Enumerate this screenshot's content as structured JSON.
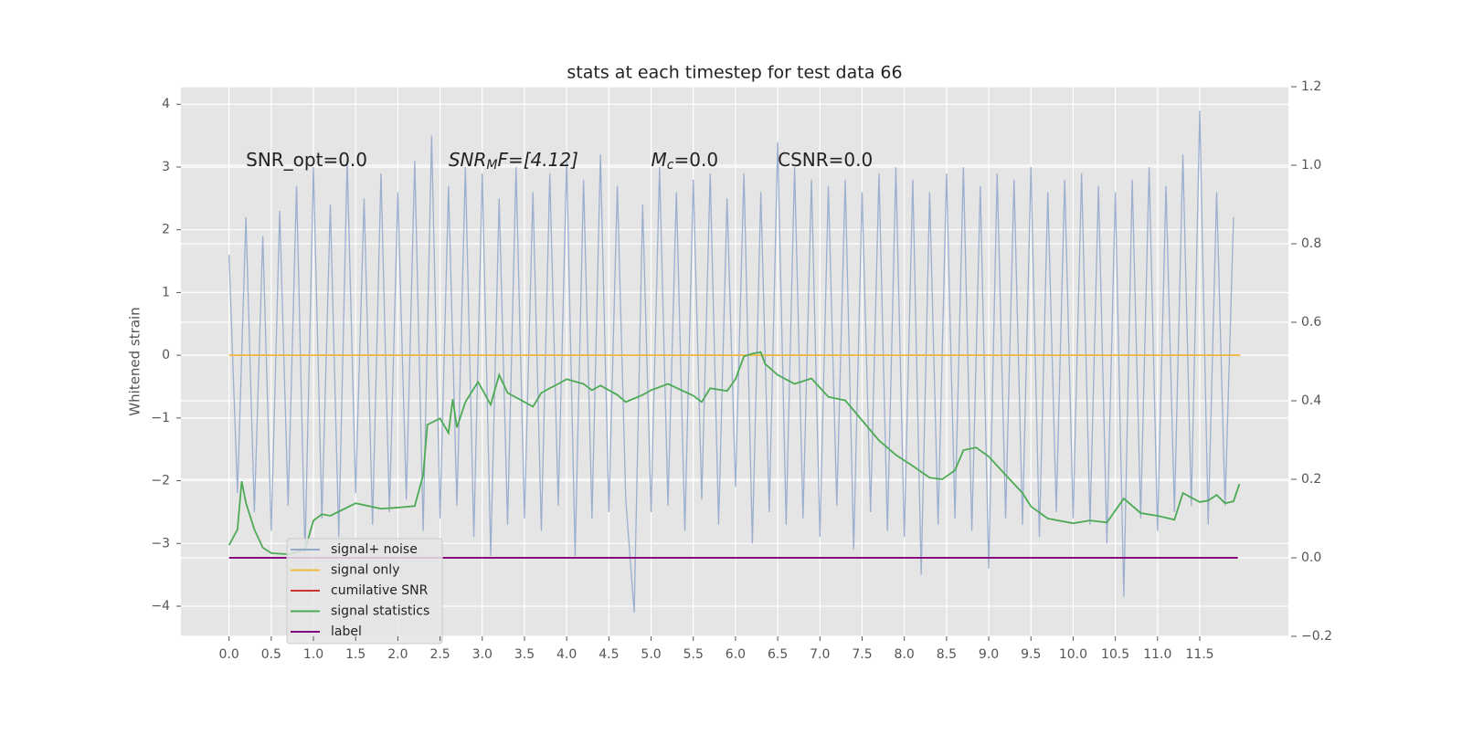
{
  "chart_data": {
    "type": "line",
    "title": "stats at each timestep for test data 66",
    "ylabel": "Whitened strain",
    "annotations": [
      {
        "parts": [
          "SNR_opt=0.0"
        ],
        "x": 0.2
      },
      {
        "parts": [
          "SNR",
          "M",
          "F=[4.12]"
        ],
        "x": 2.6
      },
      {
        "parts": [
          "M",
          "c",
          "=0.0"
        ],
        "x": 5.0
      },
      {
        "parts": [
          "CSNR=0.0"
        ],
        "x": 6.5
      }
    ],
    "annotation_y": 3.1,
    "xlim": [
      -0.57,
      12.55
    ],
    "ylim": [
      -4.48,
      4.28
    ],
    "y2lim": [
      -0.2,
      1.2
    ],
    "xticks": [
      {
        "value": 0,
        "label": "0.0"
      },
      0.5,
      {
        "value": 1,
        "label": "1.0"
      },
      1.5,
      {
        "value": 2,
        "label": "2.0"
      },
      2.5,
      {
        "value": 3,
        "label": "3.0"
      },
      3.5,
      {
        "value": 4,
        "label": "4.0"
      },
      4.5,
      {
        "value": 5,
        "label": "5.0"
      },
      5.5,
      {
        "value": 6,
        "label": "6.0"
      },
      6.5,
      {
        "value": 7,
        "label": "7.0"
      },
      7.5,
      {
        "value": 8,
        "label": "8.0"
      },
      8.5,
      {
        "value": 9,
        "label": "9.0"
      },
      9.5,
      {
        "value": 10,
        "label": "10.0"
      },
      10.5,
      {
        "value": 11,
        "label": "11.0"
      },
      11.5
    ],
    "yticks": [
      {
        "value": -4,
        "label": "−4"
      },
      {
        "value": -3,
        "label": "−3"
      },
      {
        "value": -2,
        "label": "−2"
      },
      {
        "value": -1,
        "label": "−1"
      },
      0,
      1,
      2,
      3,
      4
    ],
    "y2ticks": [
      {
        "value": -0.2,
        "label": "−0.2"
      },
      {
        "value": 0,
        "label": "0.0"
      },
      0.2,
      0.4,
      0.6,
      0.8,
      {
        "value": 1,
        "label": "1.0"
      },
      1.2
    ],
    "grid": true,
    "legend": "lower left",
    "series": [
      {
        "name": "signal+ noise",
        "color": "#93a9cc",
        "x": [
          0,
          0.1,
          0.2,
          0.3,
          0.4,
          0.5,
          0.6,
          0.7,
          0.8,
          0.9,
          1,
          1.1,
          1.2,
          1.3,
          1.4,
          1.5,
          1.6,
          1.7,
          1.8,
          1.9,
          2,
          2.1,
          2.2,
          2.3,
          2.4,
          2.5,
          2.6,
          2.7,
          2.8,
          2.9,
          3,
          3.1,
          3.2,
          3.3,
          3.4,
          3.5,
          3.6,
          3.7,
          3.8,
          3.9,
          4,
          4.1,
          4.2,
          4.3,
          4.4,
          4.5,
          4.6,
          4.7,
          4.8,
          4.9,
          5,
          5.1,
          5.2,
          5.3,
          5.4,
          5.5,
          5.6,
          5.7,
          5.8,
          5.9,
          6,
          6.1,
          6.2,
          6.3,
          6.4,
          6.5,
          6.6,
          6.7,
          6.8,
          6.9,
          7,
          7.1,
          7.2,
          7.3,
          7.4,
          7.5,
          7.6,
          7.7,
          7.8,
          7.9,
          8,
          8.1,
          8.2,
          8.3,
          8.4,
          8.5,
          8.6,
          8.7,
          8.8,
          8.9,
          9,
          9.1,
          9.2,
          9.3,
          9.4,
          9.5,
          9.6,
          9.7,
          9.8,
          9.9,
          10,
          10.1,
          10.2,
          10.3,
          10.4,
          10.5,
          10.6,
          10.7,
          10.8,
          10.9,
          11,
          11.1,
          11.2,
          11.3,
          11.4,
          11.5,
          11.6,
          11.7,
          11.8,
          11.9
        ],
        "values": [
          1.6,
          -2.2,
          2.2,
          -2.5,
          1.9,
          -2.8,
          2.3,
          -2.4,
          2.7,
          -3.2,
          3.0,
          -2.6,
          2.4,
          -2.9,
          3.1,
          -2.2,
          2.5,
          -2.7,
          2.9,
          -2.5,
          2.6,
          -2.3,
          3.1,
          -2.8,
          3.5,
          -2.6,
          2.7,
          -2.4,
          3.0,
          -2.9,
          2.9,
          -3.2,
          2.5,
          -2.7,
          3.0,
          -2.6,
          2.6,
          -2.8,
          2.9,
          -2.4,
          3.1,
          -3.2,
          2.8,
          -2.6,
          3.2,
          -2.5,
          2.7,
          -2.3,
          -4.1,
          2.4,
          -2.5,
          3.0,
          -2.4,
          2.6,
          -2.8,
          2.8,
          -2.3,
          2.9,
          -2.7,
          2.5,
          -2.1,
          2.9,
          -3.0,
          2.6,
          -2.5,
          3.4,
          -2.7,
          3.0,
          -2.6,
          2.8,
          -2.9,
          2.7,
          -2.4,
          2.8,
          -3.1,
          2.6,
          -2.5,
          2.9,
          -2.8,
          3.0,
          -2.9,
          2.8,
          -3.5,
          2.6,
          -2.7,
          2.9,
          -2.6,
          3.0,
          -2.8,
          2.7,
          -3.4,
          2.9,
          -2.6,
          2.8,
          -2.7,
          3.0,
          -2.9,
          2.6,
          -2.5,
          2.8,
          -2.6,
          2.9,
          -2.7,
          2.7,
          -3.0,
          2.6,
          -3.85,
          2.8,
          -2.6,
          3.0,
          -2.8,
          2.7,
          -2.5,
          3.2,
          -2.4,
          3.9,
          -2.7,
          2.6,
          -2.4,
          2.2
        ]
      },
      {
        "name": "signal only",
        "color": "#f0b840",
        "x": [
          0,
          11.98
        ],
        "values": [
          0,
          0
        ]
      },
      {
        "name": "cumilative SNR",
        "color": "#cc3333",
        "axis": "y2",
        "x": [
          0,
          11.95
        ],
        "values": [
          0,
          0
        ]
      },
      {
        "name": "signal statistics",
        "color": "#4caa55",
        "axis": "y2",
        "x": [
          0,
          0.1,
          0.15,
          0.2,
          0.3,
          0.4,
          0.5,
          0.7,
          0.9,
          1.0,
          1.1,
          1.2,
          1.5,
          1.8,
          2.0,
          2.2,
          2.3,
          2.35,
          2.5,
          2.6,
          2.65,
          2.7,
          2.8,
          2.95,
          3.1,
          3.2,
          3.3,
          3.5,
          3.6,
          3.7,
          3.8,
          3.9,
          4.0,
          4.2,
          4.3,
          4.4,
          4.6,
          4.7,
          4.9,
          5.0,
          5.2,
          5.5,
          5.6,
          5.7,
          5.9,
          6.0,
          6.1,
          6.2,
          6.3,
          6.35,
          6.5,
          6.7,
          6.9,
          7.1,
          7.3,
          7.5,
          7.7,
          7.9,
          8.1,
          8.3,
          8.45,
          8.6,
          8.7,
          8.85,
          9.0,
          9.2,
          9.4,
          9.5,
          9.7,
          10.0,
          10.2,
          10.4,
          10.6,
          10.8,
          11.0,
          11.2,
          11.3,
          11.5,
          11.6,
          11.7,
          11.8,
          11.9,
          11.97
        ],
        "values": [
          0.032,
          0.072,
          0.195,
          0.14,
          0.072,
          0.026,
          0.012,
          0.009,
          0.02,
          0.095,
          0.111,
          0.107,
          0.139,
          0.125,
          0.128,
          0.132,
          0.211,
          0.339,
          0.355,
          0.318,
          0.404,
          0.332,
          0.397,
          0.448,
          0.39,
          0.466,
          0.42,
          0.397,
          0.385,
          0.42,
          0.432,
          0.443,
          0.455,
          0.443,
          0.427,
          0.439,
          0.415,
          0.397,
          0.415,
          0.427,
          0.443,
          0.413,
          0.397,
          0.432,
          0.425,
          0.455,
          0.513,
          0.52,
          0.524,
          0.494,
          0.466,
          0.443,
          0.457,
          0.41,
          0.401,
          0.35,
          0.299,
          0.262,
          0.234,
          0.204,
          0.2,
          0.223,
          0.274,
          0.281,
          0.258,
          0.211,
          0.165,
          0.131,
          0.1,
          0.088,
          0.095,
          0.09,
          0.151,
          0.114,
          0.107,
          0.097,
          0.165,
          0.142,
          0.146,
          0.16,
          0.139,
          0.144,
          0.188
        ]
      },
      {
        "name": "label",
        "color": "#800080",
        "axis": "y2",
        "x": [
          0,
          11.95
        ],
        "values": [
          0,
          0
        ]
      }
    ]
  }
}
